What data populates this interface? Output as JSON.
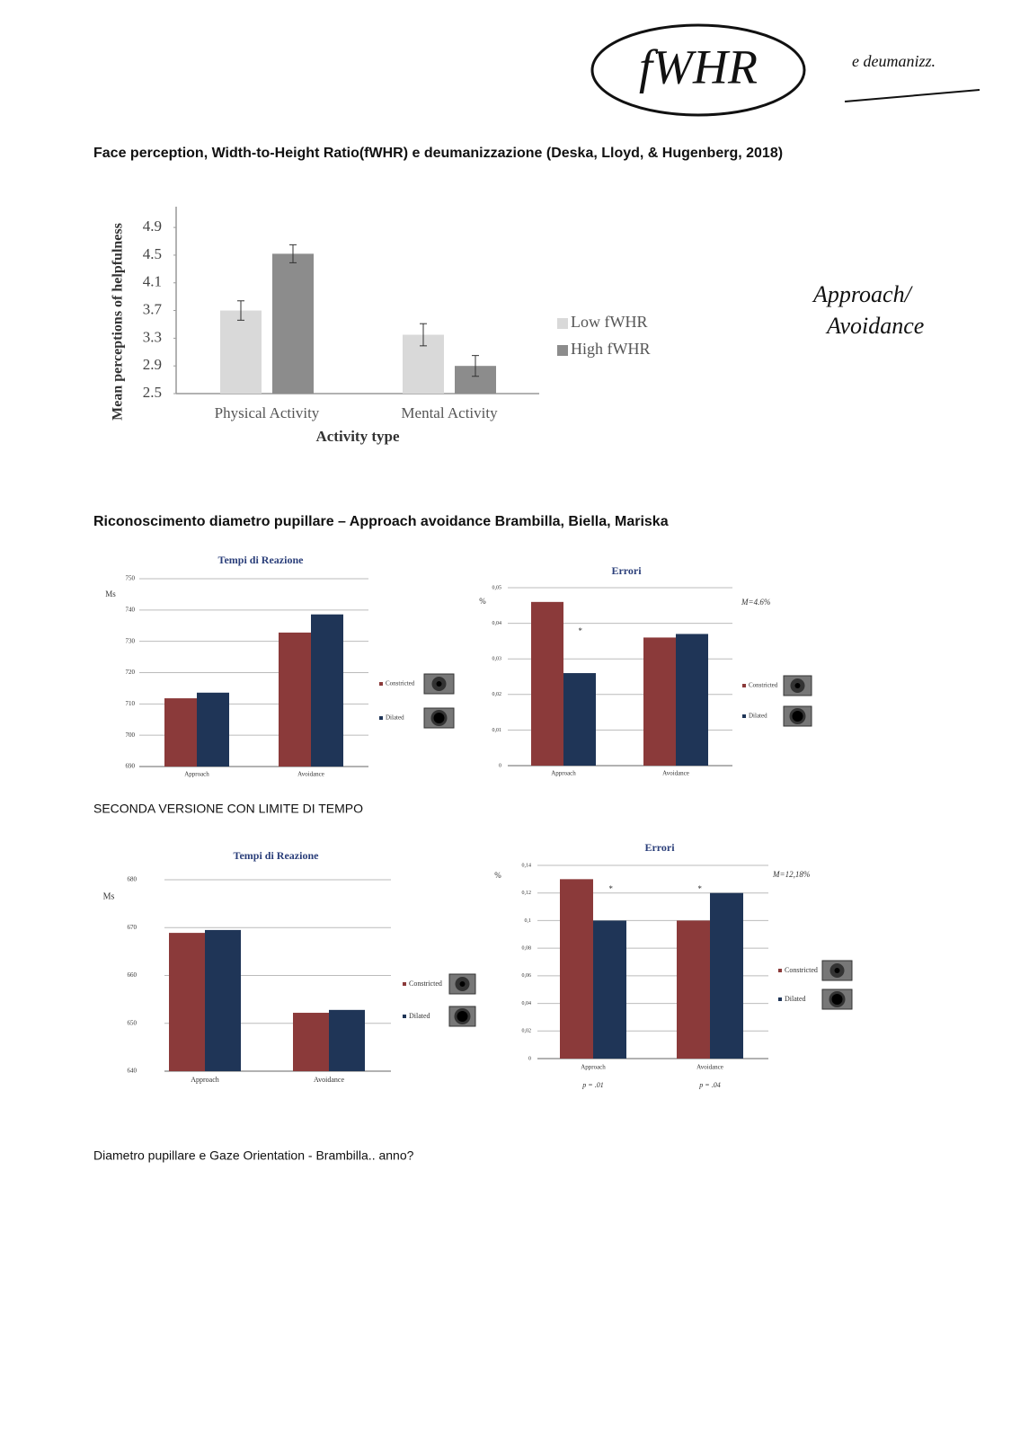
{
  "document": {
    "heading_1": "Face perception, Width-to-Height Ratio(fWHR) e deumanizzazione (Deska, Lloyd, & Hugenberg, 2018)",
    "heading_2": "Riconoscimento diametro pupillare – Approach avoidance   Brambilla, Biella, Mariska",
    "text_1": "SECONDA VERSIONE CON LIMITE DI TEMPO",
    "text_2": "Diametro pupillare e Gaze Orientation  - Brambilla.. anno?",
    "handwritten": [
      "fWHR",
      "e deumanizz.",
      "Approach/",
      "Avoidance"
    ]
  },
  "chart_data": [
    {
      "type": "bar",
      "ylabel": "Mean perceptions of helpfulness",
      "xlabel": "Activity type",
      "categories": [
        "Physical Activity",
        "Mental Activity"
      ],
      "series": [
        {
          "name": "Low fWHR",
          "color": "#d9d9d9",
          "values": [
            3.7,
            3.35
          ],
          "errors": [
            0.14,
            0.16
          ]
        },
        {
          "name": "High fWHR",
          "color": "#8c8c8c",
          "values": [
            4.52,
            2.9
          ],
          "errors": [
            0.13,
            0.15
          ]
        }
      ],
      "ylim": [
        2.5,
        5.2
      ],
      "yticks": [
        2.5,
        2.9,
        3.3,
        3.7,
        4.1,
        4.5,
        4.9
      ],
      "grid": false
    },
    {
      "type": "bar",
      "title": "Tempi di Reazione",
      "ylabel": "Ms",
      "categories": [
        "Approach",
        "Avoidance"
      ],
      "series": [
        {
          "name": "Constricted",
          "color": "#8b3a3a",
          "values": [
            711.8,
            732.8
          ]
        },
        {
          "name": "Dilated",
          "color": "#1f3557",
          "values": [
            713.6,
            738.6
          ]
        }
      ],
      "ylim": [
        690,
        750
      ],
      "yticks": [
        690,
        700,
        710,
        720,
        730,
        740,
        750
      ],
      "grid": true
    },
    {
      "type": "bar",
      "title": "Errori",
      "ylabel": "%",
      "categories": [
        "Approach",
        "Avoidance"
      ],
      "series": [
        {
          "name": "Constricted",
          "color": "#8b3a3a",
          "values": [
            0.046,
            0.036
          ]
        },
        {
          "name": "Dilated",
          "color": "#1f3557",
          "values": [
            0.026,
            0.037
          ]
        }
      ],
      "ylim": [
        0,
        0.05
      ],
      "yticks": [
        0,
        {
          "value": 0.01,
          "label": "0,01"
        },
        {
          "value": 0.02,
          "label": "0,02"
        },
        {
          "value": 0.03,
          "label": "0,03"
        },
        {
          "value": 0.04,
          "label": "0,04"
        },
        {
          "value": 0.05,
          "label": "0,05"
        }
      ],
      "annotations": [
        "M=4.6%",
        "*"
      ],
      "grid": true
    },
    {
      "type": "bar",
      "title": "Tempi di Reazione",
      "ylabel": "Ms",
      "categories": [
        "Approach",
        "Avoidance"
      ],
      "series": [
        {
          "name": "Constricted",
          "color": "#8b3a3a",
          "values": [
            668.9,
            652.2
          ]
        },
        {
          "name": "Dilated",
          "color": "#1f3557",
          "values": [
            669.5,
            652.8
          ]
        }
      ],
      "ylim": [
        640,
        680
      ],
      "yticks": [
        640,
        650,
        660,
        670,
        680
      ],
      "grid": true
    },
    {
      "type": "bar",
      "title": "Errori",
      "ylabel": "%",
      "categories": [
        "Approach",
        "Avoidance"
      ],
      "category_notes": [
        "p = .01",
        "p = .04"
      ],
      "series": [
        {
          "name": "Constricted",
          "color": "#8b3a3a",
          "values": [
            0.13,
            0.1
          ]
        },
        {
          "name": "Dilated",
          "color": "#1f3557",
          "values": [
            0.1,
            0.12
          ]
        }
      ],
      "ylim": [
        0,
        0.14
      ],
      "yticks": [
        0,
        {
          "value": 0.02,
          "label": "0,02"
        },
        {
          "value": 0.04,
          "label": "0,04"
        },
        {
          "value": 0.06,
          "label": "0,06"
        },
        {
          "value": 0.08,
          "label": "0,08"
        },
        {
          "value": 0.1,
          "label": "0,1"
        },
        {
          "value": 0.12,
          "label": "0,12"
        },
        {
          "value": 0.14,
          "label": "0,14"
        }
      ],
      "annotations": [
        "M=12,18%",
        "*",
        "*"
      ],
      "grid": true
    }
  ]
}
